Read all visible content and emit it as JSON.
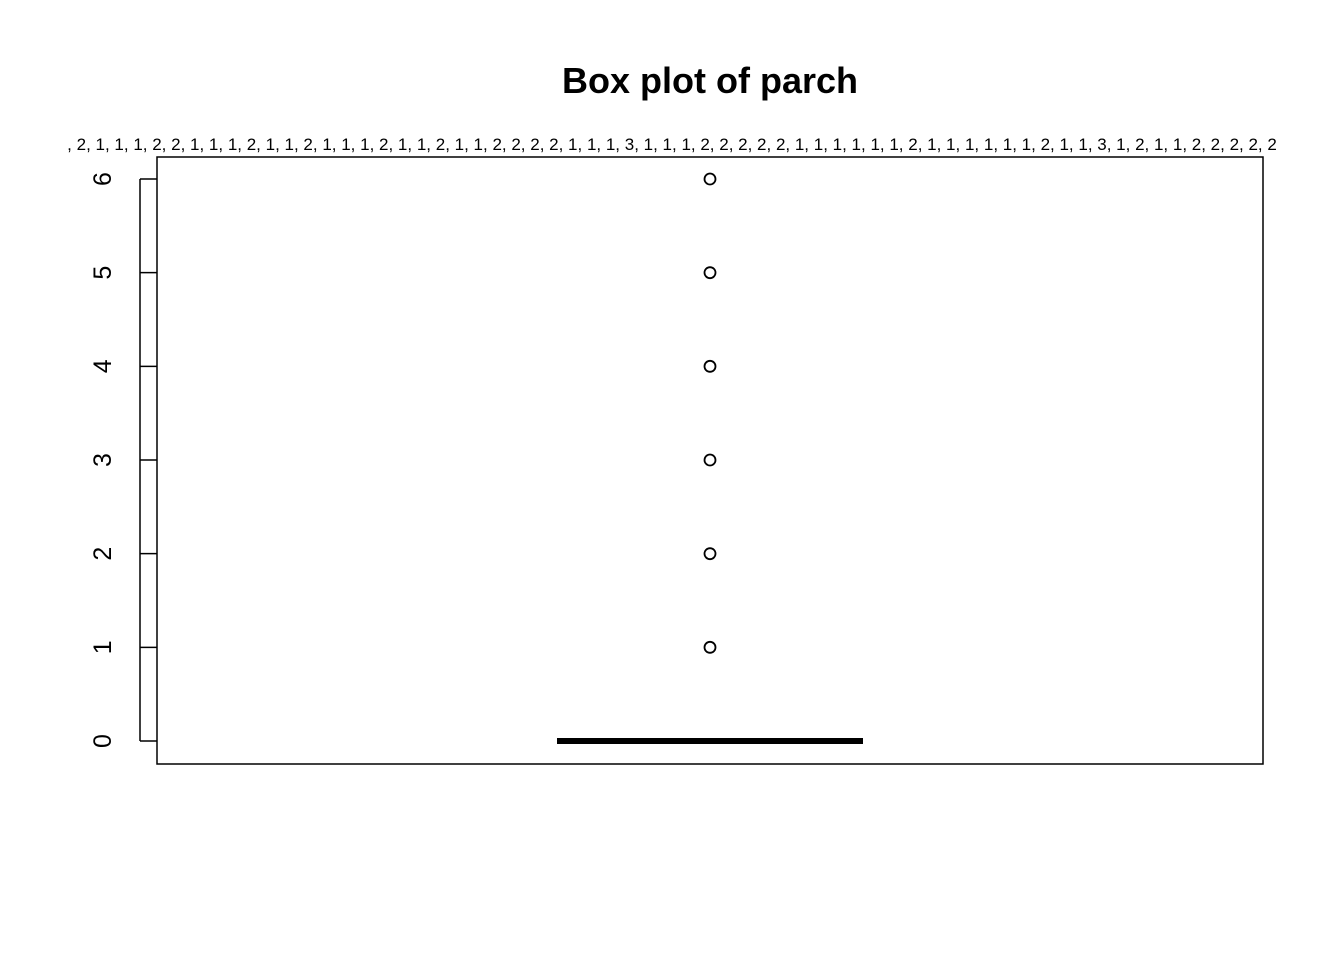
{
  "chart_data": {
    "type": "box",
    "title": "Box plot of parch",
    "xlabel": "",
    "ylabel": "",
    "ylim": [
      0,
      6
    ],
    "yticks": [
      "0",
      "1",
      "2",
      "3",
      "4",
      "5",
      "6"
    ],
    "top_label": ", 2, 1, 1, 1, 2, 2, 1, 1, 1, 2, 1, 1, 2, 1, 1, 1, 2, 1, 1, 2, 1, 1, 2, 2, 2, 2, 1, 1, 1, 3, 1, 1, 1, 2, 2, 2, 2, 2, 1, 1, 1, 1, 1, 1, 2, 1, 1, 1, 1, 1, 1, 2, 1, 1, 3, 1, 2, 1, 1, 2, 2, 2, 2, 2",
    "stats": {
      "min": 0,
      "q1": 0,
      "median": 0,
      "q3": 0,
      "max": 0
    },
    "outliers": [
      1,
      2,
      3,
      4,
      5,
      6
    ],
    "grid": false,
    "legend": "none",
    "colors": {
      "box": "#000000",
      "background": "#ffffff"
    }
  }
}
